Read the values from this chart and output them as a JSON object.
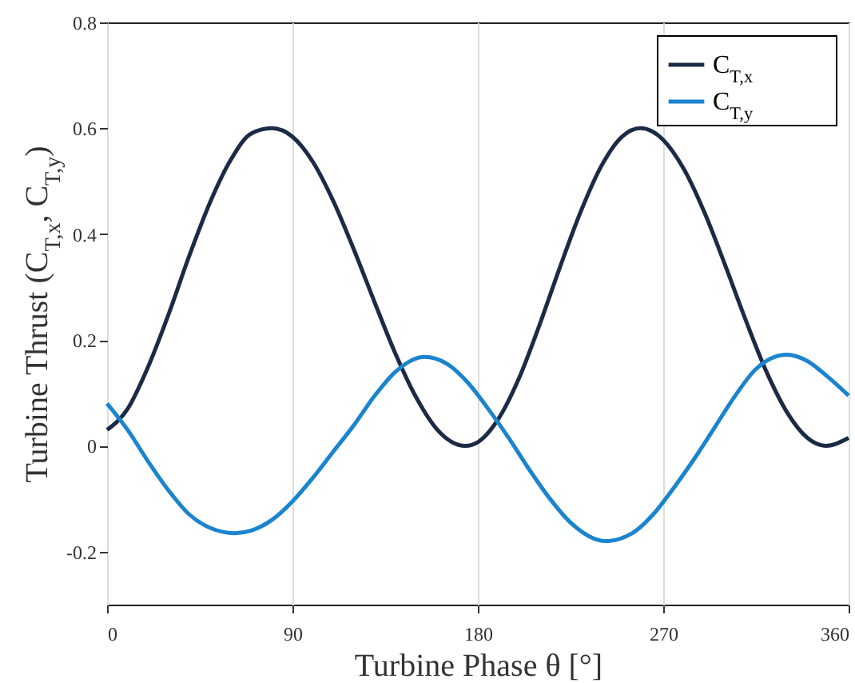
{
  "chart_data": {
    "type": "line",
    "xlabel": "Turbine Phase θ [°]",
    "ylabel": "Turbine Thrust (C$_{T,x}$, C$_{T,y}$)",
    "xlim": [
      0,
      360
    ],
    "xticks": [
      0,
      90,
      180,
      270,
      360
    ],
    "ylim": [
      -0.3,
      0.8
    ],
    "yticks": [
      -0.2,
      0,
      0.2,
      0.4,
      0.6,
      0.8
    ],
    "grid": "x",
    "legend": "top right",
    "series": [
      {
        "name": "C$_{T,x}$",
        "color": "#1c2b45",
        "x": [
          0,
          10,
          20,
          30,
          40,
          50,
          60,
          70,
          80,
          90,
          100,
          110,
          120,
          130,
          140,
          150,
          160,
          174,
          180,
          190,
          200,
          210,
          220,
          230,
          240,
          250,
          259,
          270,
          280,
          290,
          300,
          310,
          320,
          330,
          340,
          349,
          360
        ],
        "values": [
          0.03,
          0.07,
          0.15,
          0.25,
          0.36,
          0.46,
          0.54,
          0.59,
          0.6,
          0.584,
          0.536,
          0.461,
          0.369,
          0.27,
          0.174,
          0.092,
          0.032,
          0,
          0.007,
          0.051,
          0.128,
          0.229,
          0.339,
          0.443,
          0.529,
          0.584,
          0.6,
          0.578,
          0.523,
          0.441,
          0.342,
          0.238,
          0.141,
          0.064,
          0.015,
          0,
          0.015
        ]
      },
      {
        "name": "C$_{T,y}$",
        "color": "#1a84cf",
        "x": [
          0,
          10,
          20,
          30,
          40,
          50,
          62,
          70,
          80,
          90,
          100,
          110,
          120,
          130,
          140,
          154,
          165,
          175,
          185,
          195,
          205,
          215,
          225,
          242,
          255,
          265,
          275,
          285,
          295,
          305,
          315,
          330,
          340,
          350,
          360
        ],
        "values": [
          0.08,
          0.03,
          -0.03,
          -0.085,
          -0.13,
          -0.155,
          -0.165,
          -0.16,
          -0.14,
          -0.105,
          -0.06,
          -0.01,
          0.04,
          0.095,
          0.14,
          0.168,
          0.155,
          0.12,
          0.07,
          0.015,
          -0.045,
          -0.1,
          -0.145,
          -0.18,
          -0.165,
          -0.13,
          -0.08,
          -0.025,
          0.035,
          0.095,
          0.145,
          0.172,
          0.16,
          0.13,
          0.095
        ]
      }
    ]
  }
}
